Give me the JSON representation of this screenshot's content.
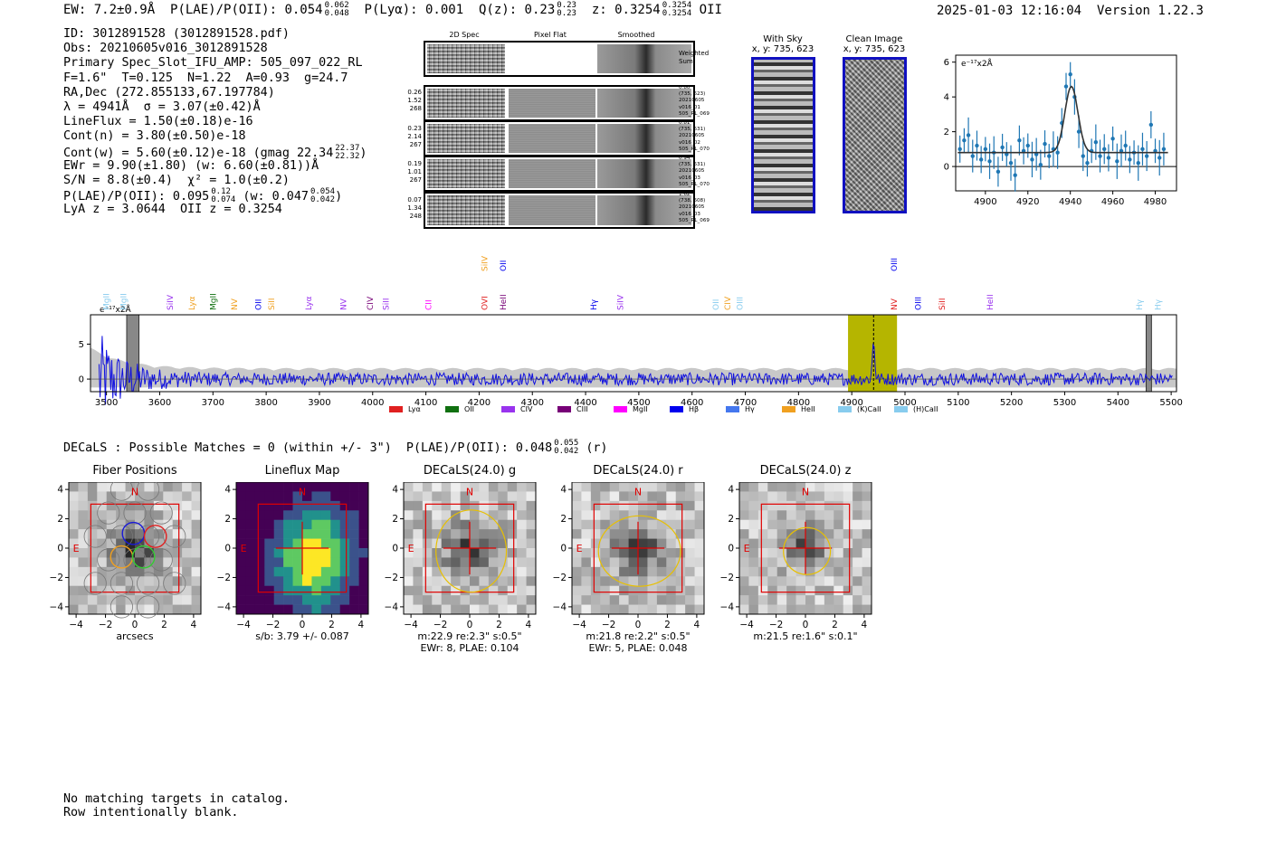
{
  "header": {
    "ew": "EW: 7.2±0.9Å",
    "plae_label": "P(LAE)/P(OII): 0.054",
    "plae_hi": "0.062",
    "plae_lo": "0.048",
    "plya": "P(Lyα): 0.001",
    "qz_label": "Q(z): 0.23",
    "qz_hi": "0.23",
    "qz_lo": "0.23",
    "z_label": "z: 0.3254",
    "z_hi": "0.3254",
    "z_lo": "0.3254",
    "z_line": "OII",
    "timestamp": "2025-01-03 12:16:04",
    "version": "Version 1.22.3"
  },
  "info": {
    "id": "ID: 3012891528 (3012891528.pdf)",
    "obs": "Obs: 20210605v016_3012891528",
    "primary": "Primary Spec_Slot_IFU_AMP: 505_097_022_RL",
    "params": "F=1.6\"  T=0.125  N=1.22  A=0.93  g=24.7",
    "radec": "RA,Dec (272.855133,67.197784)",
    "lambda": "λ = 4941Å  σ = 3.07(±0.42)Å",
    "lineflux": "LineFlux = 1.50(±0.18)e-16",
    "contn": "Cont(n) = 3.80(±0.50)e-18",
    "contw": "Cont(w) = 5.60(±0.12)e-18 (gmag 22.34",
    "contw_hi": "22.37",
    "contw_lo": "22.32",
    "contw_end": ")",
    "ewr": "EWr = 9.90(±1.80) (w: 6.60(±0.81))Å",
    "sn": "S/N = 8.8(±0.4)  χ² = 1.0(±0.2)",
    "plae": "P(LAE)/P(OII): 0.095",
    "plae_hi": "0.12",
    "plae_lo": "0.074",
    "plae_w": "(w: 0.047",
    "plae_w_hi": "0.054",
    "plae_w_lo": "0.042",
    "plae_w_end": ")",
    "lya": "LyA z = 3.0644  OII z = 0.3254"
  },
  "panel2d": {
    "col_headers": [
      "2D Spec",
      "Pixel Flat",
      "Smoothed"
    ],
    "weighted_label": "Weighted\nSum",
    "rows": [
      {
        "color": "#1a1ad8",
        "left": "0.26\n1.52\n268",
        "meta": "0.80\"\n(735, 623)\n20210605\nv016_01\n505_RL_069"
      },
      {
        "color": "#33cc33",
        "left": "0.23\n2.14\n267",
        "meta": "0.81\"\n(735, 631)\n20210605\nv016_02\n505_RL_070"
      },
      {
        "color": "#f0a020",
        "left": "0.19\n1.01\n267",
        "meta": "0.94\"\n(735, 631)\n20210605\nv016_03\n505_RL_070"
      },
      {
        "color": "#e02020",
        "left": "0.07\n1.34\n248",
        "meta": "1.62\"\n(738, 608)\n20210605\nv016_03\n505_RL_069"
      }
    ]
  },
  "stamps": {
    "sky_title": "With Sky",
    "sky_sub": "x, y: 735, 623",
    "clean_title": "Clean Image",
    "clean_sub": "x, y: 735, 623"
  },
  "zoom_fit": {
    "unit_label": "e⁻¹⁷x2Å",
    "xlim": [
      4886,
      4990
    ],
    "ylim": [
      -1.4,
      6.4
    ],
    "xticks": [
      4900,
      4920,
      4940,
      4960,
      4980
    ],
    "yticks": [
      0,
      2,
      4,
      6
    ],
    "points": [
      [
        4888,
        1.0
      ],
      [
        4890,
        1.5
      ],
      [
        4892,
        1.8
      ],
      [
        4894,
        0.6
      ],
      [
        4896,
        1.2
      ],
      [
        4898,
        0.4
      ],
      [
        4900,
        1.0
      ],
      [
        4902,
        0.3
      ],
      [
        4904,
        0.8
      ],
      [
        4906,
        -0.3
      ],
      [
        4908,
        1.1
      ],
      [
        4910,
        0.7
      ],
      [
        4912,
        0.2
      ],
      [
        4914,
        -0.5
      ],
      [
        4916,
        1.5
      ],
      [
        4918,
        0.9
      ],
      [
        4920,
        1.2
      ],
      [
        4922,
        0.4
      ],
      [
        4924,
        0.7
      ],
      [
        4926,
        0.1
      ],
      [
        4928,
        1.3
      ],
      [
        4930,
        0.6
      ],
      [
        4932,
        1.0
      ],
      [
        4934,
        0.8
      ],
      [
        4936,
        2.5
      ],
      [
        4938,
        4.6
      ],
      [
        4940,
        5.3
      ],
      [
        4942,
        4.0
      ],
      [
        4944,
        2.0
      ],
      [
        4946,
        0.6
      ],
      [
        4948,
        0.2
      ],
      [
        4950,
        0.9
      ],
      [
        4952,
        1.4
      ],
      [
        4954,
        0.6
      ],
      [
        4956,
        1.0
      ],
      [
        4958,
        0.5
      ],
      [
        4960,
        1.6
      ],
      [
        4962,
        0.3
      ],
      [
        4964,
        0.9
      ],
      [
        4966,
        1.2
      ],
      [
        4968,
        0.4
      ],
      [
        4970,
        0.8
      ],
      [
        4972,
        0.2
      ],
      [
        4974,
        1.0
      ],
      [
        4976,
        0.6
      ],
      [
        4978,
        2.4
      ],
      [
        4980,
        0.9
      ],
      [
        4982,
        0.5
      ],
      [
        4984,
        1.0
      ]
    ],
    "fit_center": 4940.5,
    "fit_sigma": 3.07,
    "fit_amp": 3.8,
    "fit_base": 0.8
  },
  "chart_data": {
    "type": "line",
    "title": "",
    "xlabel": "",
    "ylabel": "e⁻¹⁷x2Å",
    "xlim": [
      3470,
      5510
    ],
    "ylim": [
      -1.8,
      9.2
    ],
    "xticks": [
      3500,
      3600,
      3700,
      3800,
      3900,
      4000,
      4100,
      4200,
      4300,
      4400,
      4500,
      4600,
      4700,
      4800,
      4900,
      5000,
      5100,
      5200,
      5300,
      5400,
      5500
    ],
    "yticks": [
      0,
      5
    ],
    "highlight_band": [
      4893,
      4985
    ],
    "line_center": 4941,
    "masked_bands": [
      [
        3538,
        3561
      ],
      [
        5453,
        5463
      ]
    ],
    "legend": [
      {
        "name": "Lyα",
        "color": "#e02020"
      },
      {
        "name": "OII",
        "color": "#107010"
      },
      {
        "name": "CIV",
        "color": "#9933ee"
      },
      {
        "name": "CIII",
        "color": "#770077"
      },
      {
        "name": "MgII",
        "color": "#ff00ff"
      },
      {
        "name": "Hβ",
        "color": "#0000ee"
      },
      {
        "name": "Hγ",
        "color": "#4477ee"
      },
      {
        "name": "HeII",
        "color": "#f0a020"
      },
      {
        "name": "(K)CaII",
        "color": "#88ccee"
      },
      {
        "name": "(H)CaII",
        "color": "#88ccee"
      }
    ],
    "line_labels": [
      {
        "x": 3500,
        "label": "MgII",
        "color": "#88ccee",
        "row": 1
      },
      {
        "x": 3532,
        "label": "MgII",
        "color": "#88ccee",
        "row": 1
      },
      {
        "x": 3620,
        "label": "SiIV",
        "color": "#9933ee",
        "row": 1
      },
      {
        "x": 3660,
        "label": "Lyα",
        "color": "#f0a020",
        "row": 1
      },
      {
        "x": 3700,
        "label": "MgII",
        "color": "#107010",
        "row": 1
      },
      {
        "x": 3740,
        "label": "NV",
        "color": "#f0a020",
        "row": 1
      },
      {
        "x": 3785,
        "label": "OII",
        "color": "#0000ee",
        "row": 1
      },
      {
        "x": 3810,
        "label": "SiII",
        "color": "#f0a020",
        "row": 1
      },
      {
        "x": 3880,
        "label": "Lyα",
        "color": "#9933ee",
        "row": 1
      },
      {
        "x": 3945,
        "label": "NV",
        "color": "#9933ee",
        "row": 1
      },
      {
        "x": 3995,
        "label": "CIV",
        "color": "#770077",
        "row": 1
      },
      {
        "x": 4025,
        "label": "SiII",
        "color": "#9933ee",
        "row": 1
      },
      {
        "x": 4105,
        "label": "CII",
        "color": "#ff00ff",
        "row": 1
      },
      {
        "x": 4210,
        "label": "SiIV",
        "color": "#f0a020",
        "row": 0
      },
      {
        "x": 4245,
        "label": "OII",
        "color": "#0000ee",
        "row": 0
      },
      {
        "x": 4210,
        "label": "OVI",
        "color": "#e02020",
        "row": 1
      },
      {
        "x": 4245,
        "label": "HeII",
        "color": "#770077",
        "row": 1
      },
      {
        "x": 4415,
        "label": "Hγ",
        "color": "#0000ee",
        "row": 1
      },
      {
        "x": 4465,
        "label": "SiIV",
        "color": "#9933ee",
        "row": 1
      },
      {
        "x": 4645,
        "label": "OII",
        "color": "#88ccee",
        "row": 1
      },
      {
        "x": 4667,
        "label": "CIV",
        "color": "#f0a020",
        "row": 1
      },
      {
        "x": 4690,
        "label": "OIII",
        "color": "#88ccee",
        "row": 1
      },
      {
        "x": 4980,
        "label": "OIII",
        "color": "#0000ee",
        "row": 0
      },
      {
        "x": 4980,
        "label": "NV",
        "color": "#e02020",
        "row": 1
      },
      {
        "x": 5025,
        "label": "OIII",
        "color": "#0000ee",
        "row": 1
      },
      {
        "x": 5070,
        "label": "SiII",
        "color": "#e02020",
        "row": 1
      },
      {
        "x": 5160,
        "label": "HeII",
        "color": "#9933ee",
        "row": 1
      },
      {
        "x": 5440,
        "label": "Hγ",
        "color": "#88ccee",
        "row": 1
      },
      {
        "x": 5475,
        "label": "Hγ",
        "color": "#88ccee",
        "row": 1
      }
    ]
  },
  "decals": {
    "line": "DECaLS : Possible Matches = 0 (within +/- 3\")  P(LAE)/P(OII): 0.048",
    "plae_hi": "0.055",
    "plae_lo": "0.042",
    "band": "(r)",
    "axis_ticks": [
      -4,
      -2,
      0,
      2,
      4
    ],
    "panels": [
      {
        "title": "Fiber Positions",
        "caption1": "arcsecs",
        "caption2": ""
      },
      {
        "title": "Lineflux Map",
        "caption1": "s/b: 3.79 +/- 0.087",
        "caption2": ""
      },
      {
        "title": "DECaLS(24.0) g",
        "caption1": "m:22.9  re:2.3\"  s:0.5\"",
        "caption2": "EWr: 8, PLAE: 0.104"
      },
      {
        "title": "DECaLS(24.0) r",
        "caption1": "m:21.8  re:2.2\"  s:0.5\"",
        "caption2": "EWr: 5, PLAE: 0.048"
      },
      {
        "title": "DECaLS(24.0) z",
        "caption1": "m:21.5  re:1.6\"  s:0.1\"",
        "caption2": ""
      }
    ],
    "north": "N",
    "east": "E"
  },
  "footer": {
    "line1": "No matching targets in catalog.",
    "line2": "Row intentionally blank."
  }
}
